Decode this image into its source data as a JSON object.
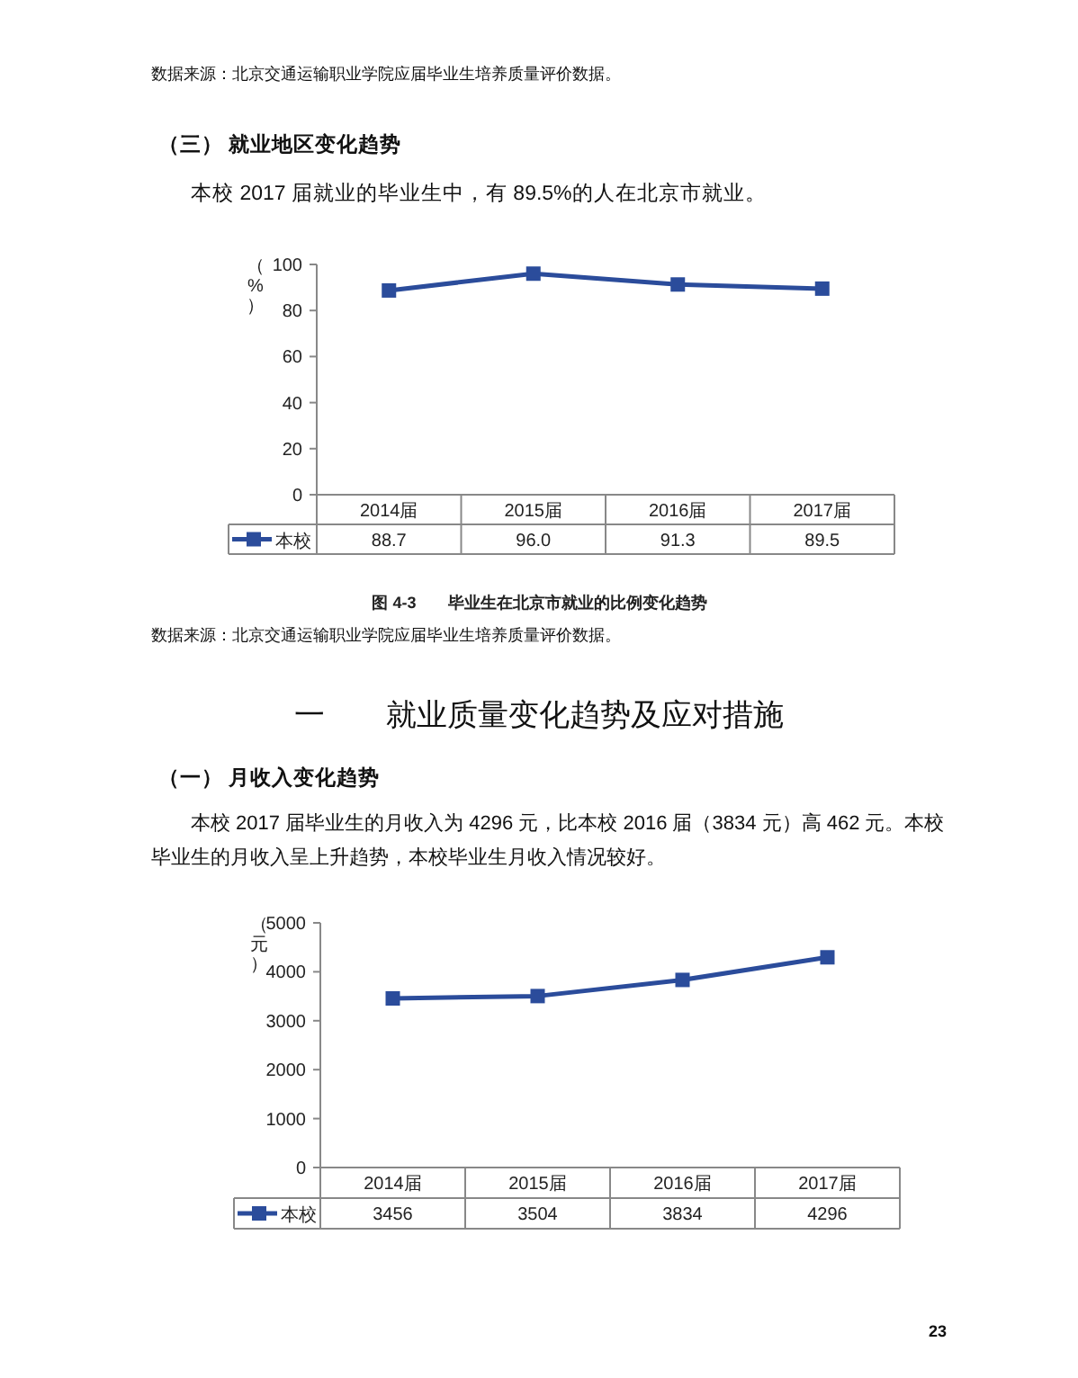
{
  "chart_data": [
    {
      "type": "line",
      "title": "图 4-3　　毕业生在北京市就业的比例变化趋势",
      "ylabel": "（%）",
      "annotations": [
        "数据来源：北京交通运输职业学院应届毕业生培养质量评价数据。",
        "（三）  就业地区变化趋势",
        "本校 2017 届就业的毕业生中，有 89.5%的人在北京市就业。",
        "数据来源：北京交通运输职业学院应届毕业生培养质量评价数据。"
      ],
      "categories": [
        "2014届",
        "2015届",
        "2016届",
        "2017届"
      ],
      "series": [
        {
          "name": "本校",
          "color": "#2b4c9b",
          "values": [
            88.7,
            96.0,
            91.3,
            89.5
          ],
          "value_labels": [
            "88.7",
            "96.0",
            "91.3",
            "89.5"
          ]
        }
      ],
      "ylim": [
        0,
        100
      ],
      "yticks": [
        0,
        20,
        40,
        60,
        80,
        100
      ],
      "marker": "square",
      "line_style": "solid",
      "grid": false
    },
    {
      "type": "line",
      "ylabel": "（元）",
      "annotations": [
        "一　　就业质量变化趋势及应对措施",
        "（一）  月收入变化趋势",
        "本校 2017 届毕业生的月收入为 4296 元，比本校 2016 届（3834 元）高 462 元。本校毕业生的月收入呈上升趋势，本校毕业生月收入情况较好。",
        "23"
      ],
      "categories": [
        "2014届",
        "2015届",
        "2016届",
        "2017届"
      ],
      "series": [
        {
          "name": "本校",
          "color": "#2b4c9b",
          "values": [
            3456,
            3504,
            3834,
            4296
          ]
        }
      ],
      "data_labels": true,
      "ylim": [
        0,
        5000
      ],
      "yticks": [
        0,
        1000,
        2000,
        3000,
        4000,
        5000
      ],
      "marker": "square",
      "line_style": "solid",
      "grid": false
    }
  ]
}
